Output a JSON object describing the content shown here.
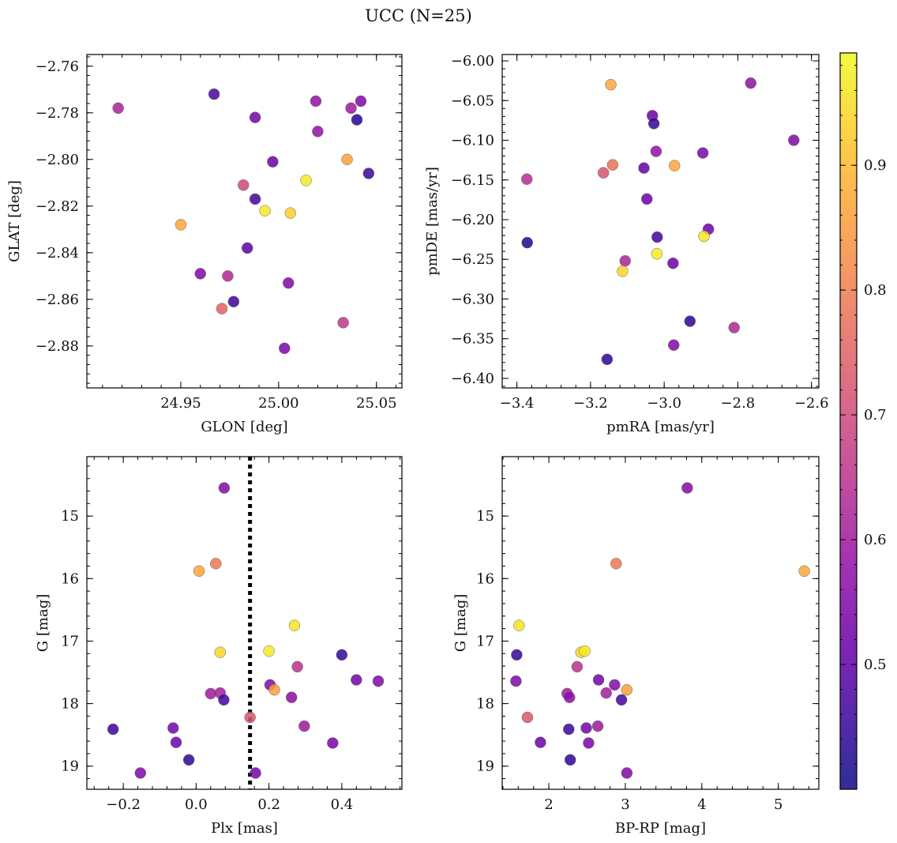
{
  "figure": {
    "title": "UCC (N=25)",
    "colormap": [
      "#0d0887",
      "#3a049a",
      "#6a00a8",
      "#8f0da4",
      "#b12a90",
      "#cc4778",
      "#e16462",
      "#f2844b",
      "#fca636",
      "#fcce25",
      "#f0f921"
    ],
    "colorbar": {
      "range": [
        0.4,
        0.99
      ],
      "ticks": [
        0.5,
        0.6,
        0.7,
        0.8,
        0.9
      ],
      "tick_labels": [
        "0.5",
        "0.6",
        "0.7",
        "0.8",
        "0.9"
      ]
    }
  },
  "chart_data": [
    {
      "type": "scatter",
      "id": "glon-glat",
      "title": "",
      "xlabel": "GLON [deg]",
      "ylabel": "GLAT [deg]",
      "xlim": [
        24.902,
        25.063
      ],
      "ylim": [
        -2.898,
        -2.755
      ],
      "xticks": [
        24.95,
        25.0,
        25.05
      ],
      "xtick_labels": [
        "24.95",
        "25.00",
        "25.05"
      ],
      "yticks": [
        -2.88,
        -2.86,
        -2.84,
        -2.82,
        -2.8,
        -2.78,
        -2.76
      ],
      "ytick_labels": [
        "−2.88",
        "−2.86",
        "−2.84",
        "−2.82",
        "−2.80",
        "−2.78",
        "−2.76"
      ],
      "points": [
        {
          "x": 24.918,
          "y": -2.778,
          "c": 0.62
        },
        {
          "x": 24.967,
          "y": -2.772,
          "c": 0.48
        },
        {
          "x": 24.988,
          "y": -2.782,
          "c": 0.53
        },
        {
          "x": 25.019,
          "y": -2.775,
          "c": 0.58
        },
        {
          "x": 25.037,
          "y": -2.778,
          "c": 0.6
        },
        {
          "x": 25.042,
          "y": -2.775,
          "c": 0.55
        },
        {
          "x": 25.04,
          "y": -2.783,
          "c": 0.43
        },
        {
          "x": 25.02,
          "y": -2.788,
          "c": 0.58
        },
        {
          "x": 24.997,
          "y": -2.801,
          "c": 0.52
        },
        {
          "x": 25.035,
          "y": -2.8,
          "c": 0.86
        },
        {
          "x": 25.046,
          "y": -2.806,
          "c": 0.46
        },
        {
          "x": 25.014,
          "y": -2.809,
          "c": 0.97
        },
        {
          "x": 24.982,
          "y": -2.811,
          "c": 0.7
        },
        {
          "x": 24.988,
          "y": -2.817,
          "c": 0.47
        },
        {
          "x": 24.993,
          "y": -2.822,
          "c": 0.97
        },
        {
          "x": 25.006,
          "y": -2.823,
          "c": 0.93
        },
        {
          "x": 24.95,
          "y": -2.828,
          "c": 0.87
        },
        {
          "x": 24.984,
          "y": -2.838,
          "c": 0.5
        },
        {
          "x": 24.96,
          "y": -2.849,
          "c": 0.55
        },
        {
          "x": 24.974,
          "y": -2.85,
          "c": 0.63
        },
        {
          "x": 25.005,
          "y": -2.853,
          "c": 0.55
        },
        {
          "x": 24.977,
          "y": -2.861,
          "c": 0.46
        },
        {
          "x": 24.971,
          "y": -2.864,
          "c": 0.75
        },
        {
          "x": 25.033,
          "y": -2.87,
          "c": 0.66
        },
        {
          "x": 25.003,
          "y": -2.881,
          "c": 0.54
        }
      ]
    },
    {
      "type": "scatter",
      "id": "pmra-pmde",
      "title": "",
      "xlabel": "pmRA [mas/yr]",
      "ylabel": "pmDE [mas/yr]",
      "xlim": [
        -3.44,
        -2.58
      ],
      "ylim": [
        -6.412,
        -5.992
      ],
      "xticks": [
        -3.4,
        -3.2,
        -3.0,
        -2.8,
        -2.6
      ],
      "xtick_labels": [
        "−3.4",
        "−3.2",
        "−3.0",
        "−2.8",
        "−2.6"
      ],
      "yticks": [
        -6.4,
        -6.35,
        -6.3,
        -6.25,
        -6.2,
        -6.15,
        -6.1,
        -6.05,
        -6.0
      ],
      "ytick_labels": [
        "−6.40",
        "−6.35",
        "−6.30",
        "−6.25",
        "−6.20",
        "−6.15",
        "−6.10",
        "−6.05",
        "−6.00"
      ],
      "points": [
        {
          "x": -3.145,
          "y": -6.03,
          "c": 0.87
        },
        {
          "x": -2.765,
          "y": -6.028,
          "c": 0.58
        },
        {
          "x": -3.032,
          "y": -6.069,
          "c": 0.52
        },
        {
          "x": -3.028,
          "y": -6.079,
          "c": 0.45
        },
        {
          "x": -2.648,
          "y": -6.1,
          "c": 0.55
        },
        {
          "x": -3.022,
          "y": -6.114,
          "c": 0.58
        },
        {
          "x": -2.895,
          "y": -6.116,
          "c": 0.54
        },
        {
          "x": -3.14,
          "y": -6.131,
          "c": 0.78
        },
        {
          "x": -2.972,
          "y": -6.132,
          "c": 0.87
        },
        {
          "x": -3.055,
          "y": -6.135,
          "c": 0.51
        },
        {
          "x": -3.165,
          "y": -6.141,
          "c": 0.72
        },
        {
          "x": -3.373,
          "y": -6.149,
          "c": 0.64
        },
        {
          "x": -3.047,
          "y": -6.174,
          "c": 0.52
        },
        {
          "x": -2.88,
          "y": -6.212,
          "c": 0.52
        },
        {
          "x": -3.019,
          "y": -6.222,
          "c": 0.47
        },
        {
          "x": -2.892,
          "y": -6.221,
          "c": 0.96
        },
        {
          "x": -3.372,
          "y": -6.229,
          "c": 0.43
        },
        {
          "x": -3.02,
          "y": -6.243,
          "c": 0.97
        },
        {
          "x": -3.106,
          "y": -6.252,
          "c": 0.62
        },
        {
          "x": -2.976,
          "y": -6.255,
          "c": 0.52
        },
        {
          "x": -3.113,
          "y": -6.265,
          "c": 0.94
        },
        {
          "x": -2.93,
          "y": -6.328,
          "c": 0.44
        },
        {
          "x": -2.81,
          "y": -6.336,
          "c": 0.63
        },
        {
          "x": -2.974,
          "y": -6.358,
          "c": 0.56
        },
        {
          "x": -3.155,
          "y": -6.376,
          "c": 0.44
        }
      ]
    },
    {
      "type": "scatter",
      "id": "plx-g",
      "title": "",
      "xlabel": "Plx [mas]",
      "ylabel": "G [mag]",
      "xlim": [
        -0.3,
        0.565
      ],
      "ylim": [
        19.37,
        14.05
      ],
      "y_inverted": true,
      "vline": {
        "x": 0.148,
        "style": "dotted"
      },
      "xticks": [
        -0.2,
        0.0,
        0.2,
        0.4
      ],
      "xtick_labels": [
        "−0.2",
        "0.0",
        "0.2",
        "0.4"
      ],
      "yticks": [
        15,
        16,
        17,
        18,
        19
      ],
      "ytick_labels": [
        "15",
        "16",
        "17",
        "18",
        "19"
      ],
      "points": [
        {
          "x": 0.077,
          "y": 14.55,
          "c": 0.56
        },
        {
          "x": 0.054,
          "y": 15.76,
          "c": 0.79
        },
        {
          "x": 0.008,
          "y": 15.88,
          "c": 0.87
        },
        {
          "x": 0.27,
          "y": 16.75,
          "c": 0.96
        },
        {
          "x": 0.066,
          "y": 17.18,
          "c": 0.94
        },
        {
          "x": 0.2,
          "y": 17.16,
          "c": 0.97
        },
        {
          "x": 0.4,
          "y": 17.22,
          "c": 0.45
        },
        {
          "x": 0.278,
          "y": 17.41,
          "c": 0.65
        },
        {
          "x": 0.44,
          "y": 17.62,
          "c": 0.53
        },
        {
          "x": 0.5,
          "y": 17.64,
          "c": 0.55
        },
        {
          "x": 0.203,
          "y": 17.7,
          "c": 0.56
        },
        {
          "x": 0.215,
          "y": 17.78,
          "c": 0.86
        },
        {
          "x": 0.04,
          "y": 17.84,
          "c": 0.6
        },
        {
          "x": 0.066,
          "y": 17.83,
          "c": 0.61
        },
        {
          "x": 0.262,
          "y": 17.9,
          "c": 0.57
        },
        {
          "x": 0.076,
          "y": 17.94,
          "c": 0.47
        },
        {
          "x": 0.148,
          "y": 18.22,
          "c": 0.73
        },
        {
          "x": 0.297,
          "y": 18.36,
          "c": 0.6
        },
        {
          "x": -0.228,
          "y": 18.41,
          "c": 0.46
        },
        {
          "x": -0.063,
          "y": 18.39,
          "c": 0.53
        },
        {
          "x": -0.055,
          "y": 18.62,
          "c": 0.52
        },
        {
          "x": 0.375,
          "y": 18.63,
          "c": 0.54
        },
        {
          "x": -0.02,
          "y": 18.9,
          "c": 0.44
        },
        {
          "x": -0.153,
          "y": 19.11,
          "c": 0.55
        },
        {
          "x": 0.163,
          "y": 19.11,
          "c": 0.53
        }
      ]
    },
    {
      "type": "scatter",
      "id": "bprp-g",
      "title": "",
      "xlabel": "BP-RP [mag]",
      "ylabel": "G [mag]",
      "xlim": [
        1.39,
        5.53
      ],
      "ylim": [
        19.37,
        14.05
      ],
      "y_inverted": true,
      "xticks": [
        2,
        3,
        4,
        5
      ],
      "xtick_labels": [
        "2",
        "3",
        "4",
        "5"
      ],
      "yticks": [
        15,
        16,
        17,
        18,
        19
      ],
      "ytick_labels": [
        "15",
        "16",
        "17",
        "18",
        "19"
      ],
      "points": [
        {
          "x": 3.81,
          "y": 14.55,
          "c": 0.56
        },
        {
          "x": 2.88,
          "y": 15.76,
          "c": 0.79
        },
        {
          "x": 5.34,
          "y": 15.88,
          "c": 0.87
        },
        {
          "x": 1.61,
          "y": 16.75,
          "c": 0.96
        },
        {
          "x": 2.42,
          "y": 17.18,
          "c": 0.94
        },
        {
          "x": 2.47,
          "y": 17.16,
          "c": 0.97
        },
        {
          "x": 1.58,
          "y": 17.22,
          "c": 0.45
        },
        {
          "x": 2.37,
          "y": 17.41,
          "c": 0.65
        },
        {
          "x": 2.65,
          "y": 17.62,
          "c": 0.53
        },
        {
          "x": 1.57,
          "y": 17.64,
          "c": 0.55
        },
        {
          "x": 2.86,
          "y": 17.7,
          "c": 0.56
        },
        {
          "x": 3.02,
          "y": 17.78,
          "c": 0.86
        },
        {
          "x": 2.24,
          "y": 17.84,
          "c": 0.6
        },
        {
          "x": 2.75,
          "y": 17.83,
          "c": 0.61
        },
        {
          "x": 2.27,
          "y": 17.9,
          "c": 0.57
        },
        {
          "x": 2.95,
          "y": 17.94,
          "c": 0.47
        },
        {
          "x": 1.72,
          "y": 18.22,
          "c": 0.73
        },
        {
          "x": 2.64,
          "y": 18.36,
          "c": 0.6
        },
        {
          "x": 2.26,
          "y": 18.41,
          "c": 0.46
        },
        {
          "x": 2.49,
          "y": 18.39,
          "c": 0.53
        },
        {
          "x": 1.89,
          "y": 18.62,
          "c": 0.52
        },
        {
          "x": 2.52,
          "y": 18.63,
          "c": 0.54
        },
        {
          "x": 2.28,
          "y": 18.9,
          "c": 0.44
        },
        {
          "x": 3.02,
          "y": 19.11,
          "c": 0.55
        }
      ]
    }
  ]
}
